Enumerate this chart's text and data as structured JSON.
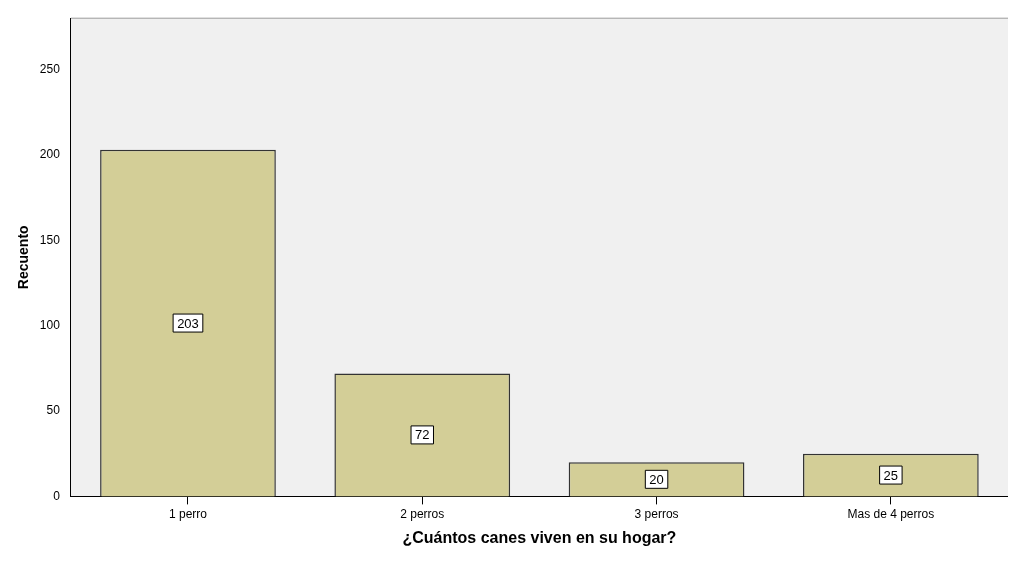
{
  "chart_data": {
    "type": "bar",
    "xlabel": "¿Cuántos canes viven en su hogar?",
    "ylabel": "Recuento",
    "categories": [
      "1 perro",
      "2 perros",
      "3 perros",
      "Mas de 4 perros"
    ],
    "values": [
      203,
      72,
      20,
      25
    ],
    "color": "#d3ce97",
    "ylim": [
      0,
      280
    ],
    "yticks": [
      0,
      50,
      100,
      150,
      200,
      250
    ],
    "grid": false,
    "legend": false,
    "data_labels": true
  }
}
